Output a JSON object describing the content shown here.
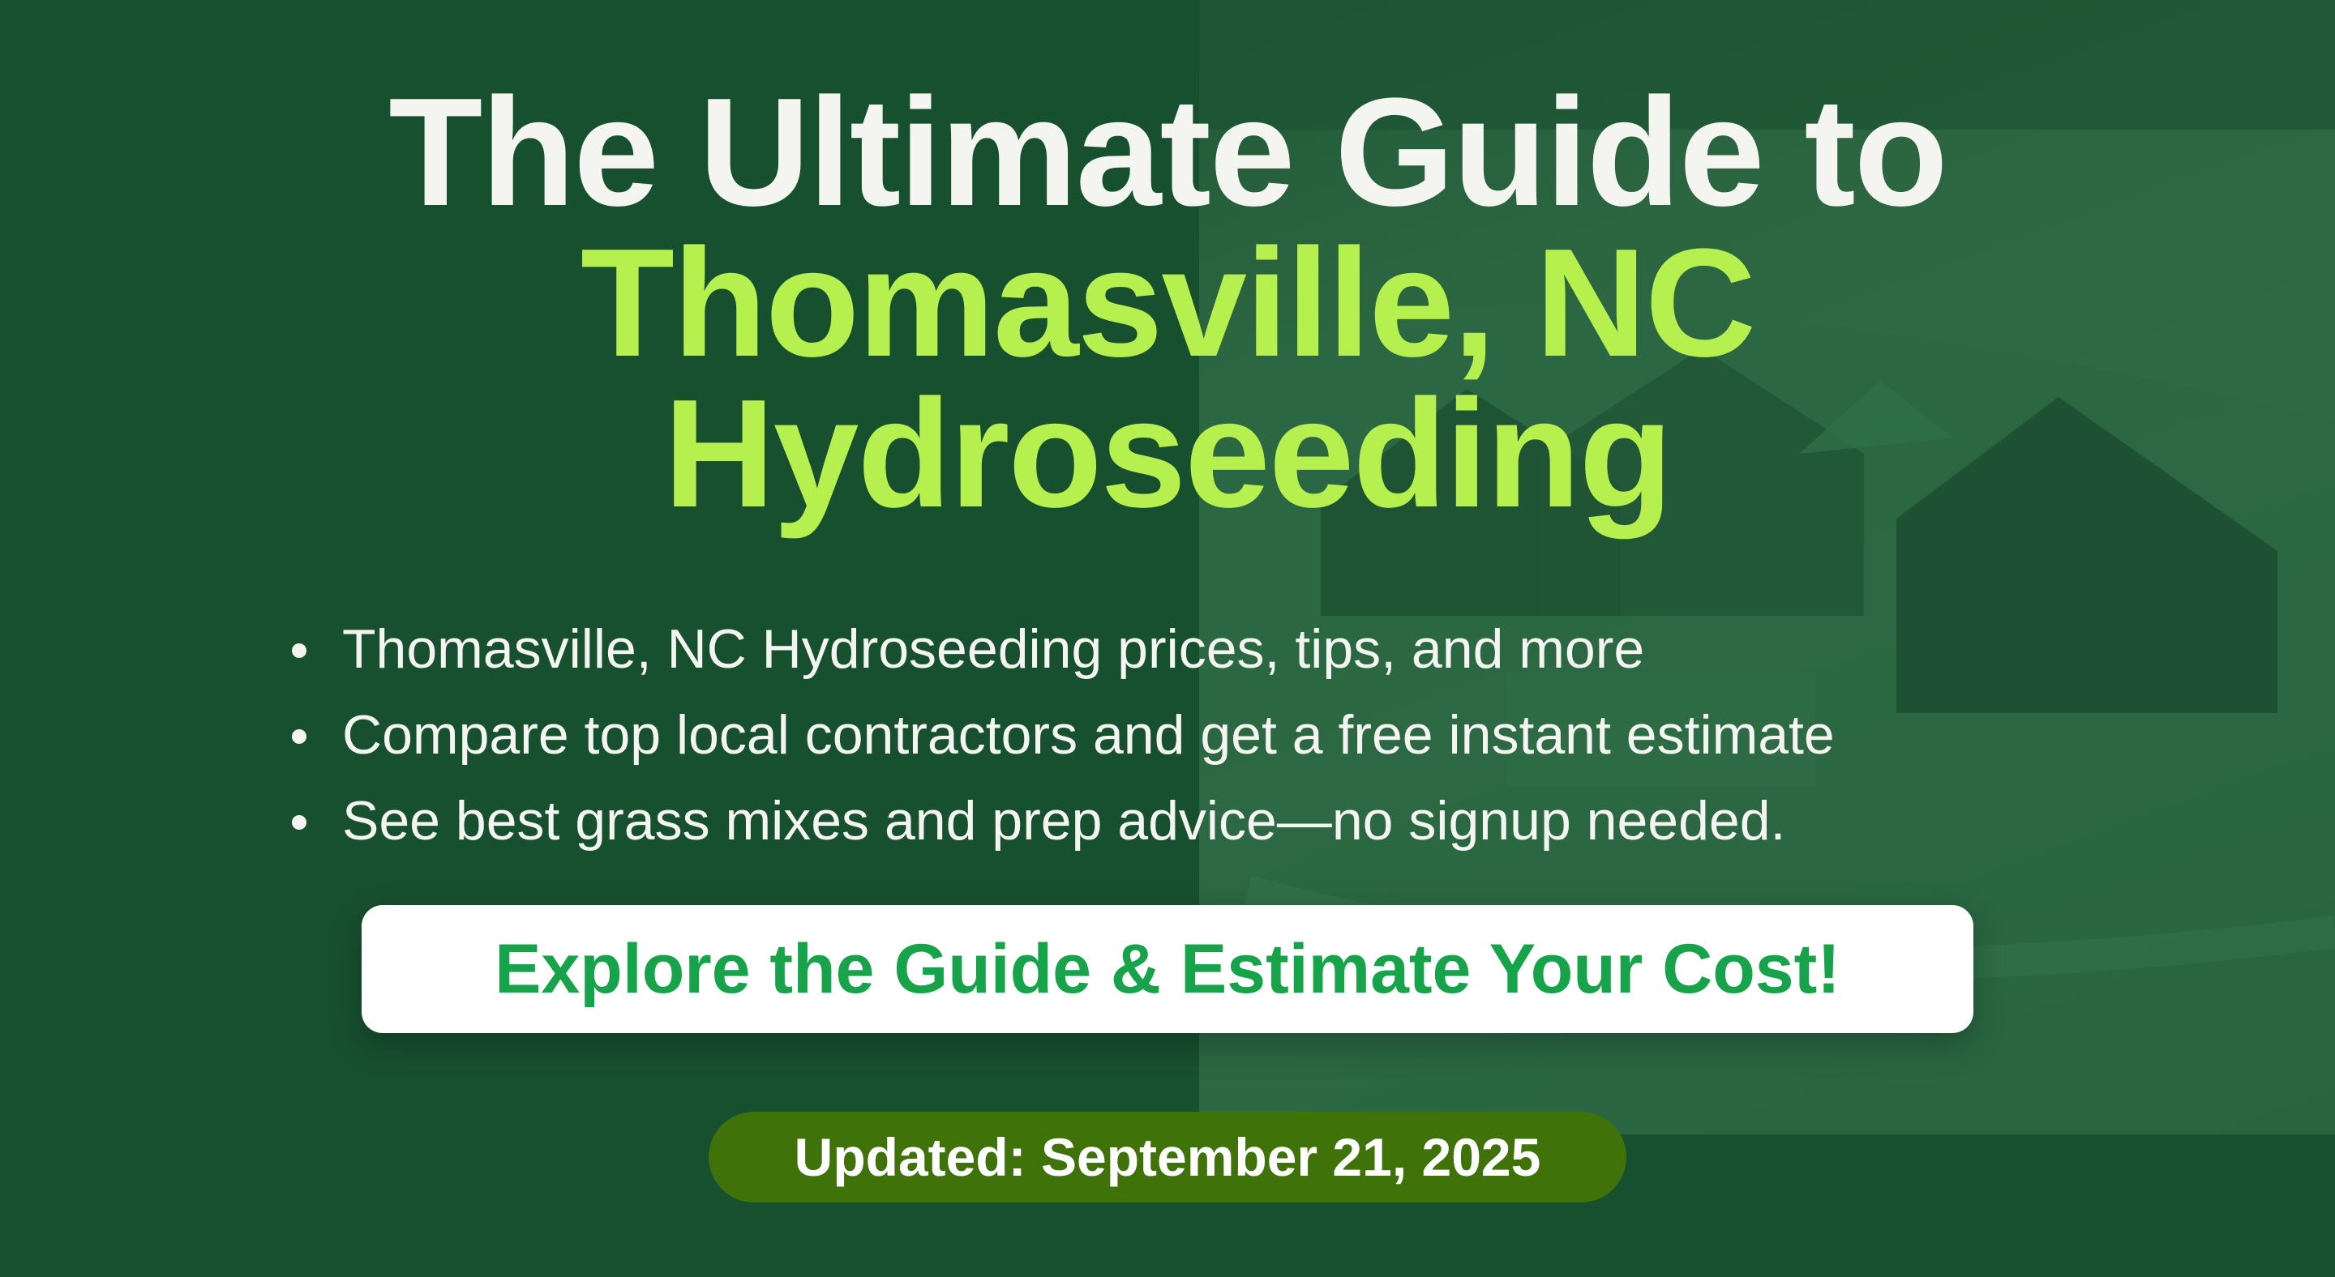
{
  "title": {
    "line1": "The Ultimate Guide to",
    "line2": "Thomasville, NC",
    "line3": "Hydroseeding"
  },
  "bullets": [
    "Thomasville, NC Hydroseeding prices, tips, and more",
    "Compare top local contractors and get a free instant estimate",
    "See best grass mixes and prep advice—no signup needed."
  ],
  "cta": {
    "label": "Explore the Guide & Estimate Your Cost!"
  },
  "updated": {
    "label": "Updated: September 21, 2025"
  },
  "colors": {
    "background": "#17502f",
    "title_white": "#f4f4f1",
    "title_accent": "#b5f04f",
    "cta_text": "#16a34a",
    "pill": "#3f730a"
  }
}
